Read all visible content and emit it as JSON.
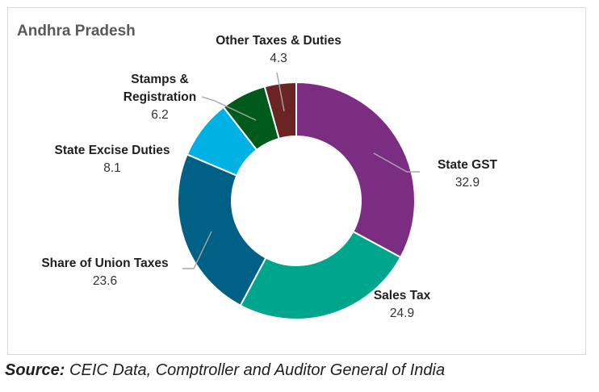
{
  "source": {
    "label": "Source:",
    "text": "CEIC Data, Comptroller and Auditor General of India"
  },
  "chart_data": {
    "type": "pie",
    "title": "Andhra Pradesh",
    "donut": true,
    "slices": [
      {
        "name": "State GST",
        "value": 32.9,
        "color": "#7b2d82"
      },
      {
        "name": "Sales Tax",
        "value": 24.9,
        "color": "#00a58e"
      },
      {
        "name": "Share of Union Taxes",
        "value": 23.6,
        "color": "#006086"
      },
      {
        "name": "State Excise Duties",
        "value": 8.1,
        "color": "#00b2e3"
      },
      {
        "name": "Stamps & Registration",
        "value": 6.2,
        "color": "#005a1c"
      },
      {
        "name": "Other Taxes & Duties",
        "value": 4.3,
        "color": "#6b2424"
      }
    ],
    "leader_color": "#a6a6a6"
  }
}
